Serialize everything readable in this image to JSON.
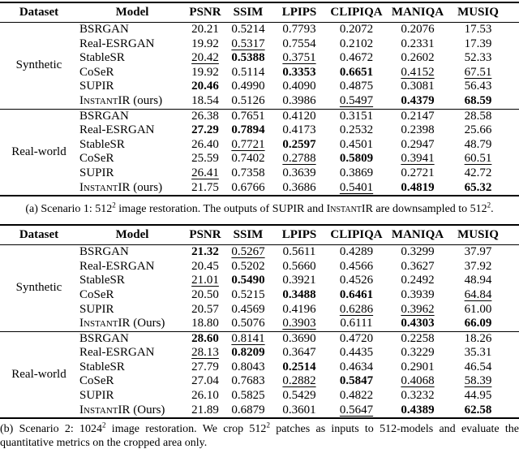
{
  "columns": [
    "Dataset",
    "Model",
    "PSNR",
    "SSIM",
    "LPIPS",
    "CLIPIQA",
    "MANIQA",
    "MUSIQ"
  ],
  "tables": [
    {
      "id": "scenario-1",
      "sections": [
        {
          "dataset": "Synthetic",
          "rows": [
            {
              "model": {
                "name": "BSRGAN"
              },
              "cells": [
                {
                  "v": "20.21"
                },
                {
                  "v": "0.5214"
                },
                {
                  "v": "0.7793"
                },
                {
                  "v": "0.2072"
                },
                {
                  "v": "0.2076"
                },
                {
                  "v": "17.53"
                }
              ]
            },
            {
              "model": {
                "name": "Real-ESRGAN"
              },
              "cells": [
                {
                  "v": "19.92"
                },
                {
                  "v": "0.5317",
                  "s": "u"
                },
                {
                  "v": "0.7554"
                },
                {
                  "v": "0.2102"
                },
                {
                  "v": "0.2331"
                },
                {
                  "v": "17.39"
                }
              ]
            },
            {
              "model": {
                "name": "StableSR"
              },
              "cells": [
                {
                  "v": "20.42",
                  "s": "u"
                },
                {
                  "v": "0.5388",
                  "s": "b"
                },
                {
                  "v": "0.3751",
                  "s": "u"
                },
                {
                  "v": "0.4672"
                },
                {
                  "v": "0.2602"
                },
                {
                  "v": "52.33"
                }
              ]
            },
            {
              "model": {
                "name": "CoSeR"
              },
              "cells": [
                {
                  "v": "19.92"
                },
                {
                  "v": "0.5114"
                },
                {
                  "v": "0.3353",
                  "s": "b"
                },
                {
                  "v": "0.6651",
                  "s": "b"
                },
                {
                  "v": "0.4152",
                  "s": "u"
                },
                {
                  "v": "67.51",
                  "s": "u"
                }
              ]
            },
            {
              "model": {
                "name": "SUPIR"
              },
              "cells": [
                {
                  "v": "20.46",
                  "s": "b"
                },
                {
                  "v": "0.4990"
                },
                {
                  "v": "0.4090"
                },
                {
                  "v": "0.4875"
                },
                {
                  "v": "0.3081"
                },
                {
                  "v": "56.43"
                }
              ]
            },
            {
              "model": {
                "name": "InstantIR",
                "sc": true,
                "suffix": " (ours)"
              },
              "cells": [
                {
                  "v": "18.54"
                },
                {
                  "v": "0.5126"
                },
                {
                  "v": "0.3986"
                },
                {
                  "v": "0.5497",
                  "s": "u"
                },
                {
                  "v": "0.4379",
                  "s": "b"
                },
                {
                  "v": "68.59",
                  "s": "b"
                }
              ]
            }
          ]
        },
        {
          "dataset": "Real-world",
          "rows": [
            {
              "model": {
                "name": "BSRGAN"
              },
              "cells": [
                {
                  "v": "26.38"
                },
                {
                  "v": "0.7651"
                },
                {
                  "v": "0.4120"
                },
                {
                  "v": "0.3151"
                },
                {
                  "v": "0.2147"
                },
                {
                  "v": "28.58"
                }
              ]
            },
            {
              "model": {
                "name": "Real-ESRGAN"
              },
              "cells": [
                {
                  "v": "27.29",
                  "s": "b"
                },
                {
                  "v": "0.7894",
                  "s": "b"
                },
                {
                  "v": "0.4173"
                },
                {
                  "v": "0.2532"
                },
                {
                  "v": "0.2398"
                },
                {
                  "v": "25.66"
                }
              ]
            },
            {
              "model": {
                "name": "StableSR"
              },
              "cells": [
                {
                  "v": "26.40"
                },
                {
                  "v": "0.7721",
                  "s": "u"
                },
                {
                  "v": "0.2597",
                  "s": "b"
                },
                {
                  "v": "0.4501"
                },
                {
                  "v": "0.2947"
                },
                {
                  "v": "48.79"
                }
              ]
            },
            {
              "model": {
                "name": "CoSeR"
              },
              "cells": [
                {
                  "v": "25.59"
                },
                {
                  "v": "0.7402"
                },
                {
                  "v": "0.2788",
                  "s": "u"
                },
                {
                  "v": "0.5809",
                  "s": "b"
                },
                {
                  "v": "0.3941",
                  "s": "u"
                },
                {
                  "v": "60.51",
                  "s": "u"
                }
              ]
            },
            {
              "model": {
                "name": "SUPIR"
              },
              "cells": [
                {
                  "v": "26.41",
                  "s": "u"
                },
                {
                  "v": "0.7358"
                },
                {
                  "v": "0.3639"
                },
                {
                  "v": "0.3869"
                },
                {
                  "v": "0.2721"
                },
                {
                  "v": "42.72"
                }
              ]
            },
            {
              "model": {
                "name": "InstantIR",
                "sc": true,
                "suffix": " (ours)"
              },
              "cells": [
                {
                  "v": "21.75"
                },
                {
                  "v": "0.6766"
                },
                {
                  "v": "0.3686"
                },
                {
                  "v": "0.5401",
                  "s": "u"
                },
                {
                  "v": "0.4819",
                  "s": "b"
                },
                {
                  "v": "65.32",
                  "s": "b"
                }
              ]
            }
          ]
        }
      ],
      "caption_parts": [
        {
          "text": "(a) Scenario 1: 512"
        },
        {
          "text": "2",
          "style": "sup"
        },
        {
          "text": " image restoration. The outputs of SUPIR and "
        },
        {
          "text": "InstantIR",
          "style": "sc"
        },
        {
          "text": " are downsampled to 512"
        },
        {
          "text": "2",
          "style": "sup"
        },
        {
          "text": "."
        }
      ]
    },
    {
      "id": "scenario-2",
      "sections": [
        {
          "dataset": "Synthetic",
          "rows": [
            {
              "model": {
                "name": "BSRGAN"
              },
              "cells": [
                {
                  "v": "21.32",
                  "s": "b"
                },
                {
                  "v": "0.5267",
                  "s": "u"
                },
                {
                  "v": "0.5611"
                },
                {
                  "v": "0.4289"
                },
                {
                  "v": "0.3299"
                },
                {
                  "v": "37.97"
                }
              ]
            },
            {
              "model": {
                "name": "Real-ESRGAN"
              },
              "cells": [
                {
                  "v": "20.45"
                },
                {
                  "v": "0.5202"
                },
                {
                  "v": "0.5660"
                },
                {
                  "v": "0.4566"
                },
                {
                  "v": "0.3627"
                },
                {
                  "v": "37.92"
                }
              ]
            },
            {
              "model": {
                "name": "StableSR"
              },
              "cells": [
                {
                  "v": "21.01",
                  "s": "u"
                },
                {
                  "v": "0.5490",
                  "s": "b"
                },
                {
                  "v": "0.3921"
                },
                {
                  "v": "0.4526"
                },
                {
                  "v": "0.2492"
                },
                {
                  "v": "48.94"
                }
              ]
            },
            {
              "model": {
                "name": "CoSeR"
              },
              "cells": [
                {
                  "v": "20.50"
                },
                {
                  "v": "0.5215"
                },
                {
                  "v": "0.3488",
                  "s": "b"
                },
                {
                  "v": "0.6461",
                  "s": "b"
                },
                {
                  "v": "0.3939"
                },
                {
                  "v": "64.84",
                  "s": "u"
                }
              ]
            },
            {
              "model": {
                "name": "SUPIR"
              },
              "cells": [
                {
                  "v": "20.57"
                },
                {
                  "v": "0.4569"
                },
                {
                  "v": "0.4196"
                },
                {
                  "v": "0.6286",
                  "s": "u"
                },
                {
                  "v": "0.3962",
                  "s": "u"
                },
                {
                  "v": "61.00"
                }
              ]
            },
            {
              "model": {
                "name": "InstantIR",
                "sc": true,
                "suffix": " (Ours)"
              },
              "cells": [
                {
                  "v": "18.80"
                },
                {
                  "v": "0.5076"
                },
                {
                  "v": "0.3903",
                  "s": "u"
                },
                {
                  "v": "0.6111"
                },
                {
                  "v": "0.4303",
                  "s": "b"
                },
                {
                  "v": "66.09",
                  "s": "b"
                }
              ]
            }
          ]
        },
        {
          "dataset": "Real-world",
          "rows": [
            {
              "model": {
                "name": "BSRGAN"
              },
              "cells": [
                {
                  "v": "28.60",
                  "s": "b"
                },
                {
                  "v": "0.8141",
                  "s": "u"
                },
                {
                  "v": "0.3690"
                },
                {
                  "v": "0.4720"
                },
                {
                  "v": "0.2258"
                },
                {
                  "v": "18.26"
                }
              ]
            },
            {
              "model": {
                "name": "Real-ESRGAN"
              },
              "cells": [
                {
                  "v": "28.13",
                  "s": "u"
                },
                {
                  "v": "0.8209",
                  "s": "b"
                },
                {
                  "v": "0.3647"
                },
                {
                  "v": "0.4435"
                },
                {
                  "v": "0.3229"
                },
                {
                  "v": "35.31"
                }
              ]
            },
            {
              "model": {
                "name": "StableSR"
              },
              "cells": [
                {
                  "v": "27.79"
                },
                {
                  "v": "0.8043"
                },
                {
                  "v": "0.2514",
                  "s": "b"
                },
                {
                  "v": "0.4634"
                },
                {
                  "v": "0.2901"
                },
                {
                  "v": "46.54"
                }
              ]
            },
            {
              "model": {
                "name": "CoSeR"
              },
              "cells": [
                {
                  "v": "27.04"
                },
                {
                  "v": "0.7683"
                },
                {
                  "v": "0.2882",
                  "s": "u"
                },
                {
                  "v": "0.5847",
                  "s": "b"
                },
                {
                  "v": "0.4068",
                  "s": "u"
                },
                {
                  "v": "58.39",
                  "s": "u"
                }
              ]
            },
            {
              "model": {
                "name": "SUPIR"
              },
              "cells": [
                {
                  "v": "26.10"
                },
                {
                  "v": "0.5825"
                },
                {
                  "v": "0.5429"
                },
                {
                  "v": "0.4822"
                },
                {
                  "v": "0.3232"
                },
                {
                  "v": "44.95"
                }
              ]
            },
            {
              "model": {
                "name": "InstantIR",
                "sc": true,
                "suffix": " (Ours)"
              },
              "cells": [
                {
                  "v": "21.89"
                },
                {
                  "v": "0.6879"
                },
                {
                  "v": "0.3601"
                },
                {
                  "v": "0.5647",
                  "s": "u"
                },
                {
                  "v": "0.4389",
                  "s": "b"
                },
                {
                  "v": "62.58",
                  "s": "b"
                }
              ]
            }
          ]
        }
      ],
      "caption_parts": [
        {
          "text": "(b) Scenario 2: 1024"
        },
        {
          "text": "2",
          "style": "sup"
        },
        {
          "text": " image restoration. We crop 512"
        },
        {
          "text": "2",
          "style": "sup"
        },
        {
          "text": " patches as inputs to 512-models and evaluate the quantitative metrics on the cropped area only."
        }
      ]
    }
  ]
}
